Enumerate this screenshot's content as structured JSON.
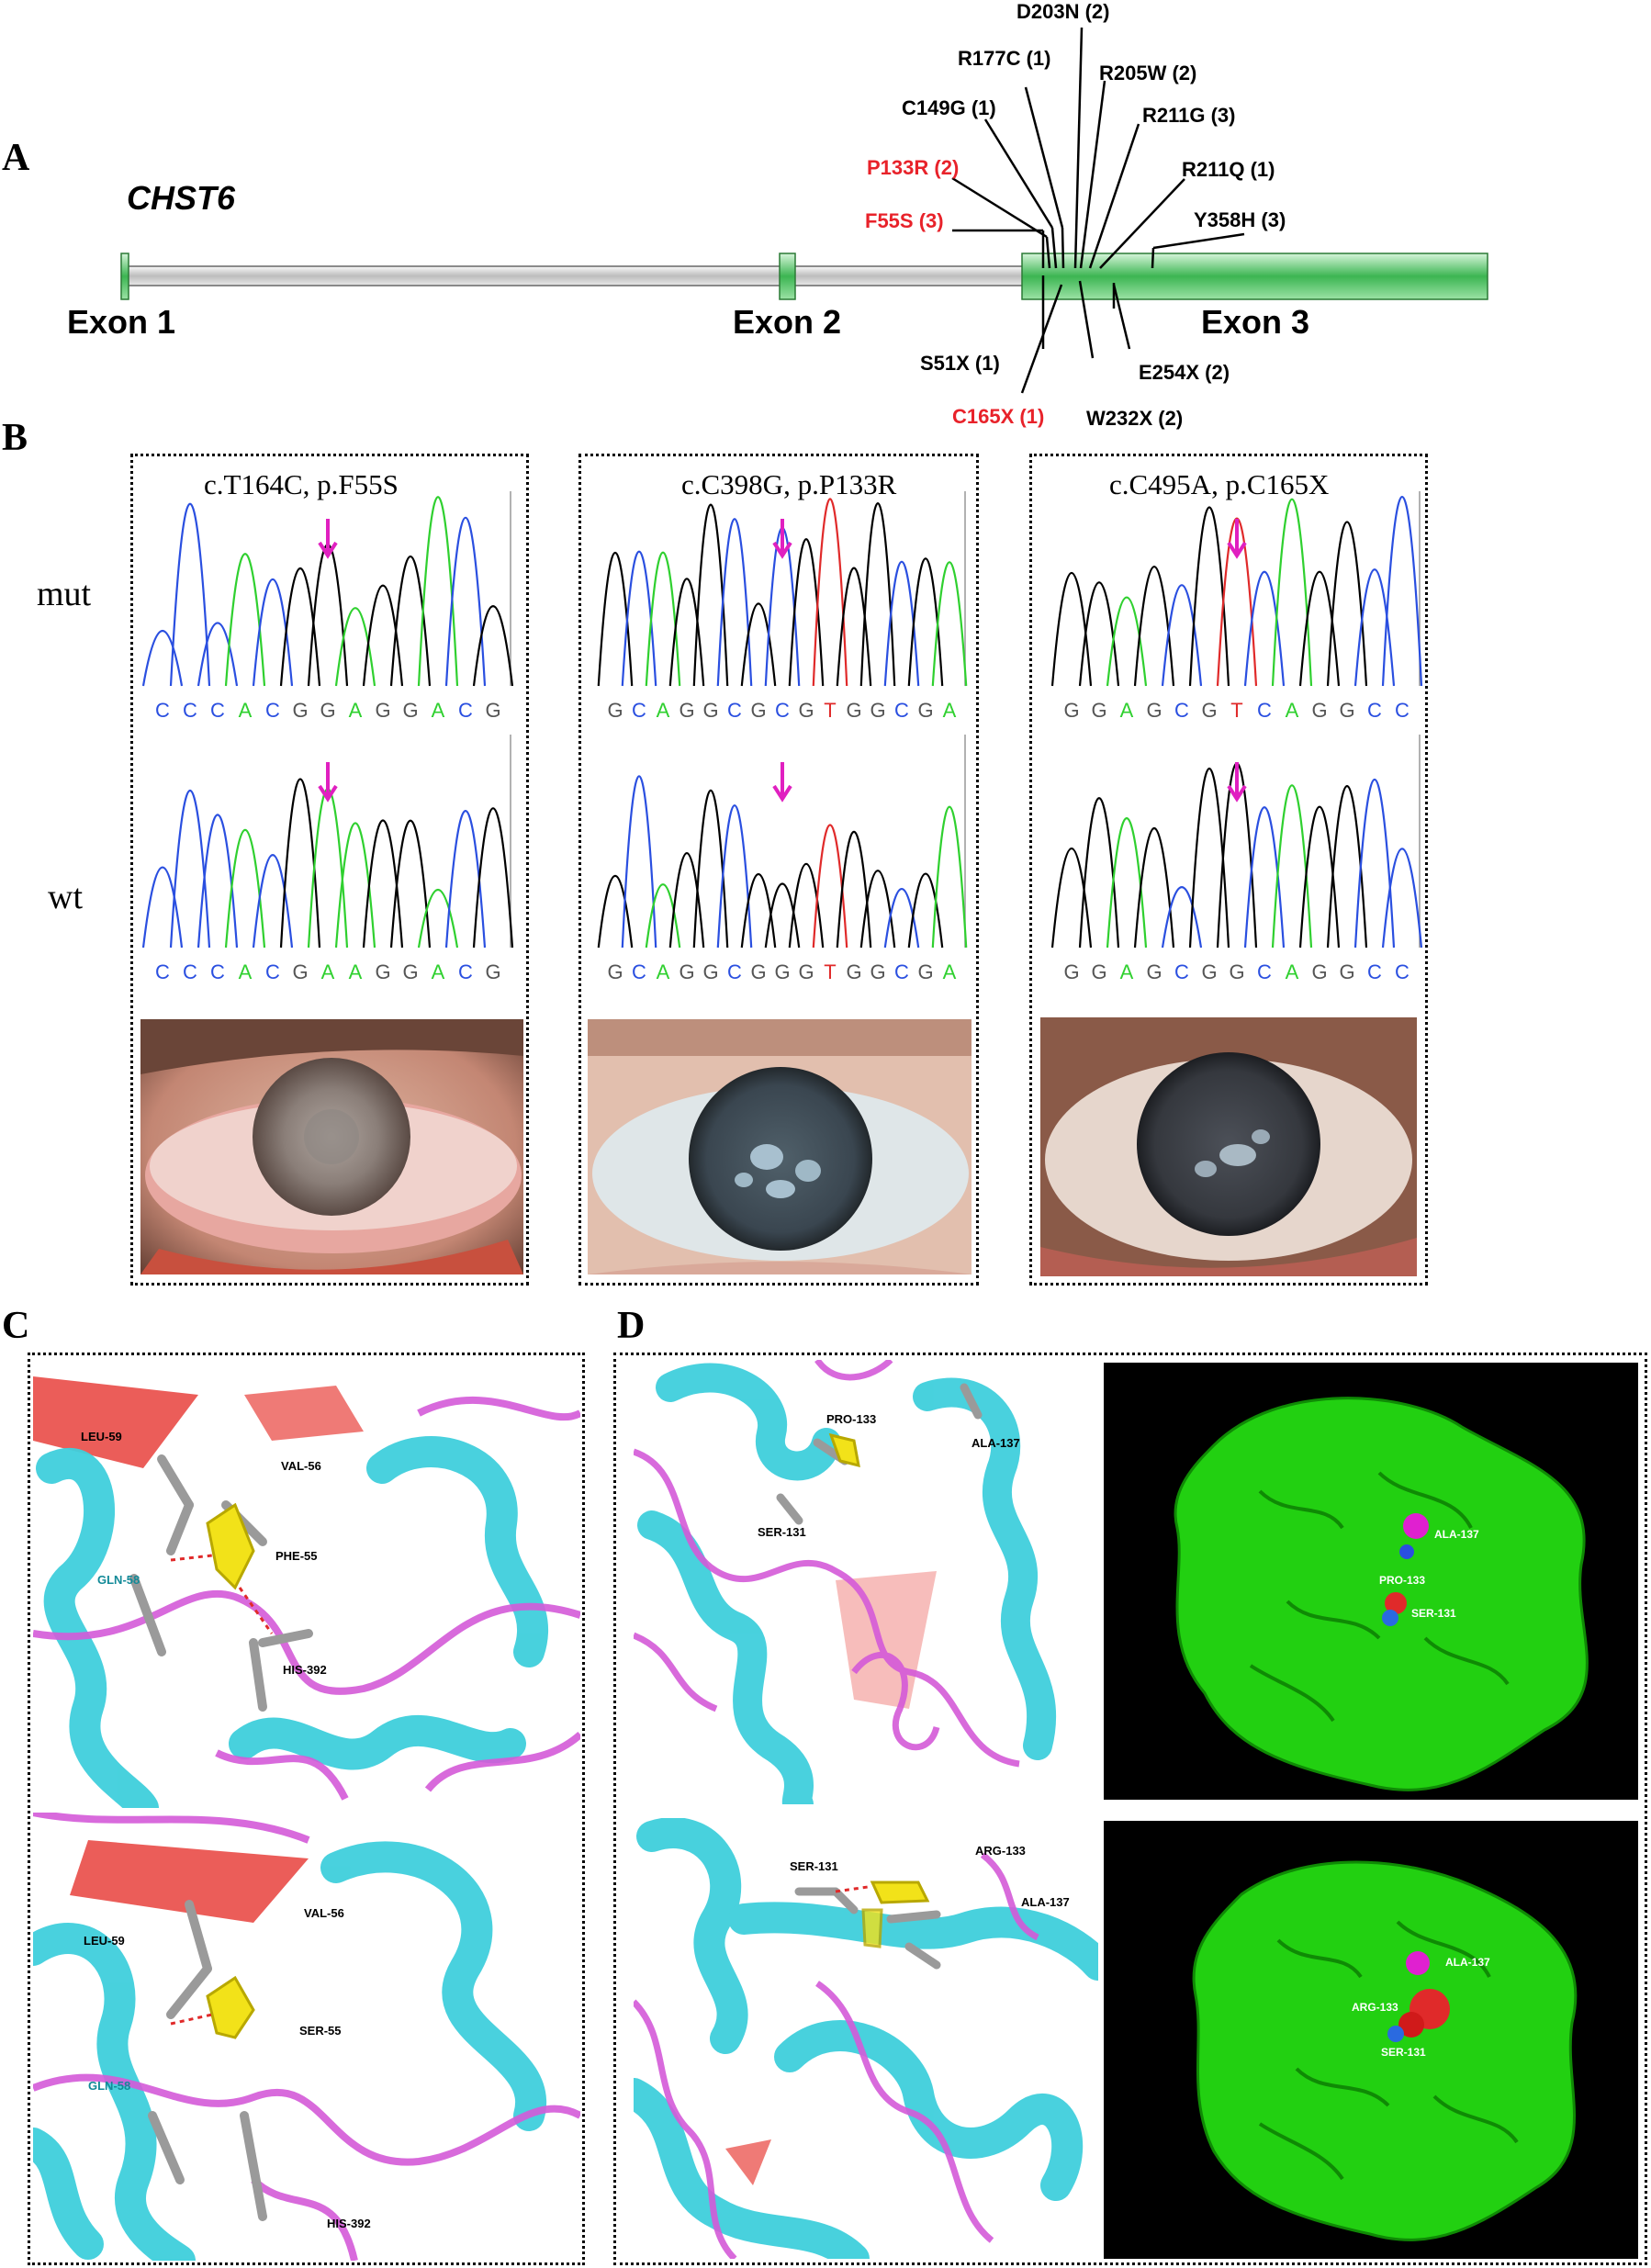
{
  "panels": {
    "a": "A",
    "b": "B",
    "c": "C",
    "d": "D"
  },
  "gene_name": "CHST6",
  "exons": [
    "Exon 1",
    "Exon 2",
    "Exon 3"
  ],
  "mutations_top": [
    {
      "label": "D203N (2)",
      "red": false
    },
    {
      "label": "R177C (1)",
      "red": false
    },
    {
      "label": "R205W (2)",
      "red": false
    },
    {
      "label": "C149G (1)",
      "red": false
    },
    {
      "label": "R211G (3)",
      "red": false
    },
    {
      "label": "P133R (2)",
      "red": true
    },
    {
      "label": "R211Q (1)",
      "red": false
    },
    {
      "label": "F55S (3)",
      "red": true
    },
    {
      "label": "Y358H (3)",
      "red": false
    }
  ],
  "mutations_bottom": [
    {
      "label": "S51X (1)",
      "red": false
    },
    {
      "label": "E254X (2)",
      "red": false
    },
    {
      "label": "C165X (1)",
      "red": true
    },
    {
      "label": "W232X (2)",
      "red": false
    }
  ],
  "row_labels": {
    "mut": "mut",
    "wt": "wt"
  },
  "sequencing": [
    {
      "title": "c.T164C, p.F55S",
      "mut_bases": [
        "C",
        "C",
        "C",
        "A",
        "C",
        "G",
        "G",
        "A",
        "G",
        "G",
        "A",
        "C",
        "G"
      ],
      "wt_bases": [
        "C",
        "C",
        "C",
        "A",
        "C",
        "G",
        "A",
        "A",
        "G",
        "G",
        "A",
        "C",
        "G"
      ]
    },
    {
      "title": "c.C398G, p.P133R",
      "mut_bases": [
        "G",
        "C",
        "A",
        "G",
        "G",
        "C",
        "G",
        "C",
        "G",
        "T",
        "G",
        "G",
        "C",
        "G",
        "A"
      ],
      "wt_bases": [
        "G",
        "C",
        "A",
        "G",
        "G",
        "C",
        "G",
        "G",
        "G",
        "T",
        "G",
        "G",
        "C",
        "G",
        "A"
      ]
    },
    {
      "title": "c.C495A, p.C165X",
      "mut_bases": [
        "G",
        "G",
        "A",
        "G",
        "C",
        "G",
        "T",
        "C",
        "A",
        "G",
        "G",
        "C",
        "C"
      ],
      "wt_bases": [
        "G",
        "G",
        "A",
        "G",
        "C",
        "G",
        "G",
        "C",
        "A",
        "G",
        "G",
        "C",
        "C"
      ]
    }
  ],
  "residues_c_top": [
    "LEU-59",
    "VAL-56",
    "PHE-55",
    "GLN-58",
    "HIS-392"
  ],
  "residues_c_bottom": [
    "LEU-59",
    "VAL-56",
    "SER-55",
    "GLN-58",
    "HIS-392"
  ],
  "residues_d_top": [
    "PRO-133",
    "ALA-137",
    "SER-131"
  ],
  "residues_d_top_surface": [
    "ALA-137",
    "PRO-133",
    "SER-131"
  ],
  "residues_d_bottom": [
    "SER-131",
    "ARG-133",
    "ALA-137"
  ],
  "residues_d_bottom_surface": [
    "ALA-137",
    "ARG-133",
    "SER-131"
  ],
  "colors": {
    "helix": "#3fcfdc",
    "loop": "#d45ad8",
    "sheet": "#e8413c",
    "surface": "#22d011",
    "base_A": "#2fd02f",
    "base_C": "#2a4fe0",
    "base_G": "#000000",
    "base_T": "#e02a2a",
    "arrow": "#e020c0"
  }
}
